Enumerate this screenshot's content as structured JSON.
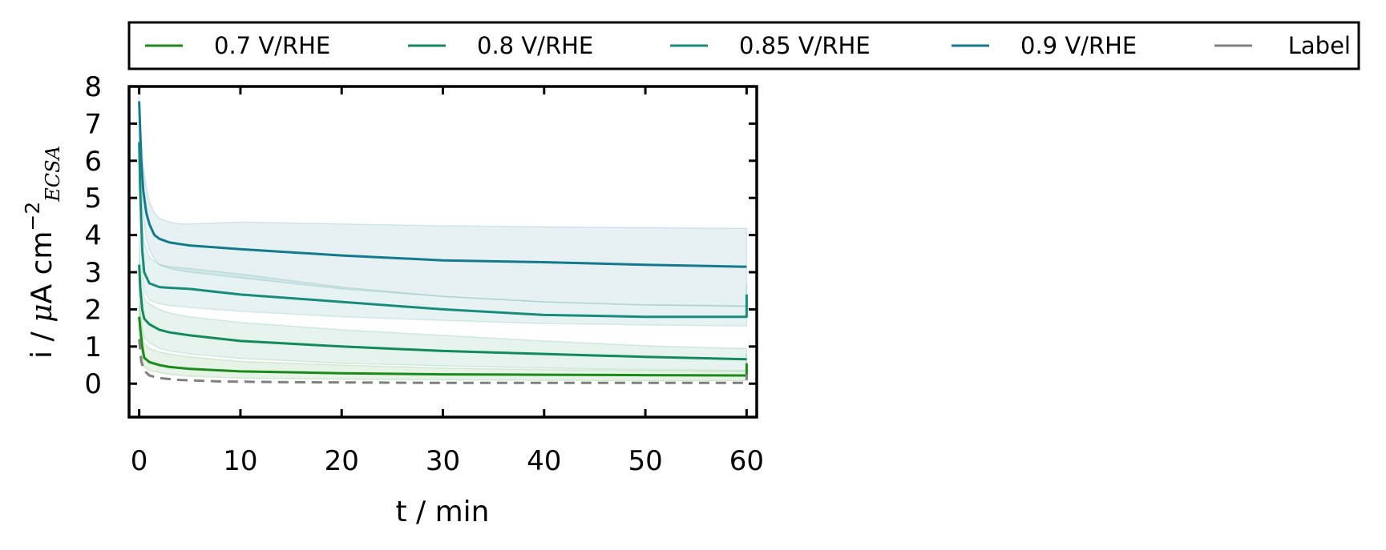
{
  "chart_data": {
    "type": "line",
    "title": "",
    "xlabel": "t / min",
    "ylabel_main": "i / ",
    "ylabel_mu": "μ",
    "ylabel_units": "A cm",
    "ylabel_exp": "−2",
    "ylabel_sub": "ECSA",
    "xlim": [
      -1,
      61
    ],
    "ylim": [
      -0.9,
      8
    ],
    "xticks": [
      0,
      10,
      20,
      30,
      40,
      50,
      60
    ],
    "yticks": [
      0,
      1,
      2,
      3,
      4,
      5,
      6,
      7,
      8
    ],
    "grid": false,
    "legend_placement": "top, above plot, 5 columns",
    "series": [
      {
        "name": "0.7 V/RHE",
        "color": "#1a8a1a",
        "dashed": false,
        "x": [
          0,
          0.1,
          0.3,
          0.5,
          1,
          2,
          3,
          5,
          10,
          20,
          30,
          40,
          50,
          59.5,
          60,
          60
        ],
        "y": [
          1.8,
          1.5,
          1.0,
          0.7,
          0.58,
          0.5,
          0.45,
          0.4,
          0.33,
          0.28,
          0.25,
          0.24,
          0.23,
          0.22,
          0.22,
          0.55
        ],
        "band_upper": [
          2.2,
          1.9,
          1.4,
          1.1,
          0.95,
          0.85,
          0.8,
          0.72,
          0.6,
          0.5,
          0.42,
          0.38,
          0.35,
          0.33,
          0.33,
          0.8
        ],
        "band_lower": [
          1.4,
          1.1,
          0.7,
          0.45,
          0.35,
          0.3,
          0.25,
          0.2,
          0.15,
          0.12,
          0.1,
          0.09,
          0.08,
          0.08,
          0.08,
          0.3
        ]
      },
      {
        "name": "0.8 V/RHE",
        "color": "#138a5e",
        "dashed": false,
        "x": [
          0,
          0.1,
          0.3,
          0.5,
          1,
          2,
          3,
          5,
          10,
          20,
          30,
          40,
          50,
          59.5,
          60
        ],
        "y": [
          3.2,
          2.6,
          2.0,
          1.75,
          1.6,
          1.45,
          1.38,
          1.3,
          1.15,
          1.0,
          0.88,
          0.8,
          0.72,
          0.66,
          0.66
        ],
        "band_upper": [
          4.0,
          3.3,
          2.6,
          2.3,
          2.15,
          2.0,
          1.9,
          1.8,
          1.65,
          1.45,
          1.3,
          1.15,
          1.02,
          0.95,
          0.95
        ],
        "band_lower": [
          2.4,
          1.9,
          1.5,
          1.25,
          1.1,
          0.95,
          0.88,
          0.8,
          0.68,
          0.55,
          0.48,
          0.42,
          0.38,
          0.35,
          0.35
        ]
      },
      {
        "name": "0.85 V/RHE",
        "color": "#188c7c",
        "dashed": false,
        "x": [
          0,
          0.1,
          0.3,
          0.5,
          1,
          2,
          3,
          5,
          10,
          20,
          30,
          40,
          50,
          59.5,
          60,
          60
        ],
        "y": [
          6.5,
          5.2,
          3.6,
          3.0,
          2.7,
          2.6,
          2.58,
          2.55,
          2.4,
          2.2,
          2.0,
          1.85,
          1.8,
          1.8,
          1.8,
          2.4
        ],
        "band_upper": [
          7.2,
          6.0,
          4.5,
          3.8,
          3.4,
          3.2,
          3.15,
          3.1,
          2.95,
          2.6,
          2.35,
          2.2,
          2.12,
          2.1,
          2.1,
          2.7
        ],
        "band_lower": [
          5.8,
          4.5,
          3.0,
          2.5,
          2.25,
          2.15,
          2.1,
          2.05,
          1.95,
          1.8,
          1.7,
          1.62,
          1.58,
          1.55,
          1.55,
          2.0
        ]
      },
      {
        "name": "0.9 V/RHE",
        "color": "#137a8e",
        "dashed": false,
        "x": [
          0,
          0.1,
          0.2,
          0.4,
          0.7,
          1,
          1.5,
          2,
          3,
          4,
          5,
          10,
          20,
          30,
          40,
          50,
          59.5,
          60
        ],
        "y": [
          7.6,
          6.8,
          6.0,
          5.2,
          4.6,
          4.3,
          4.0,
          3.9,
          3.8,
          3.76,
          3.72,
          3.62,
          3.45,
          3.32,
          3.27,
          3.2,
          3.15,
          3.15
        ],
        "band_upper": [
          7.9,
          7.2,
          6.6,
          5.9,
          5.3,
          4.9,
          4.6,
          4.45,
          4.35,
          4.3,
          4.3,
          4.35,
          4.3,
          4.25,
          4.22,
          4.2,
          4.18,
          4.18
        ],
        "band_lower": [
          7.2,
          6.3,
          5.4,
          4.5,
          3.9,
          3.6,
          3.35,
          3.2,
          3.1,
          3.05,
          3.0,
          2.85,
          2.55,
          2.35,
          2.2,
          2.12,
          2.08,
          2.08
        ]
      },
      {
        "name": "Label",
        "color": "#808080",
        "dashed": true,
        "x": [
          0,
          0.2,
          0.5,
          1,
          2,
          4,
          8,
          15,
          30,
          45,
          59.5,
          60,
          60
        ],
        "y": [
          1.2,
          0.6,
          0.35,
          0.22,
          0.15,
          0.1,
          0.06,
          0.04,
          0.02,
          0.02,
          0.02,
          0.02,
          0.25
        ],
        "band_upper": [],
        "band_lower": []
      }
    ]
  }
}
